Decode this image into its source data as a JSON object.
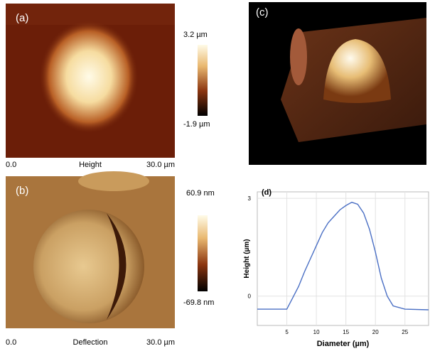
{
  "panels": {
    "a": {
      "label": "(a)",
      "scale_max": "3.2 µm",
      "scale_min": "-1.9 µm",
      "axis_start": "0.0",
      "channel": "Height",
      "axis_end": "30.0 µm"
    },
    "b": {
      "label": "(b)",
      "scale_max": "60.9 nm",
      "scale_min": "-69.8 nm",
      "axis_start": "0.0",
      "channel": "Deflection",
      "axis_end": "30.0 µm"
    },
    "c": {
      "label": "(c)"
    }
  },
  "chart_data": {
    "type": "line",
    "title": "(d)",
    "x_label": "Diameter (µm)",
    "y_label": "Height (µm)",
    "x": [
      0,
      5,
      6,
      7,
      8,
      9,
      10,
      11,
      12,
      13,
      14,
      15,
      16,
      17,
      18,
      19,
      20,
      21,
      22,
      23,
      25,
      29
    ],
    "series": [
      {
        "name": "Height",
        "color": "#4a6fc4",
        "values": [
          -0.4,
          -0.4,
          -0.05,
          0.3,
          0.75,
          1.15,
          1.55,
          1.95,
          2.25,
          2.45,
          2.65,
          2.78,
          2.88,
          2.82,
          2.55,
          2.05,
          1.35,
          0.55,
          0.0,
          -0.3,
          -0.4,
          -0.42
        ]
      }
    ],
    "xlim": [
      0,
      29
    ],
    "ylim": [
      -0.9,
      3.2
    ],
    "xticks": [
      5,
      10,
      15,
      20,
      25
    ],
    "yticks": [
      0,
      3
    ],
    "grid": true
  }
}
